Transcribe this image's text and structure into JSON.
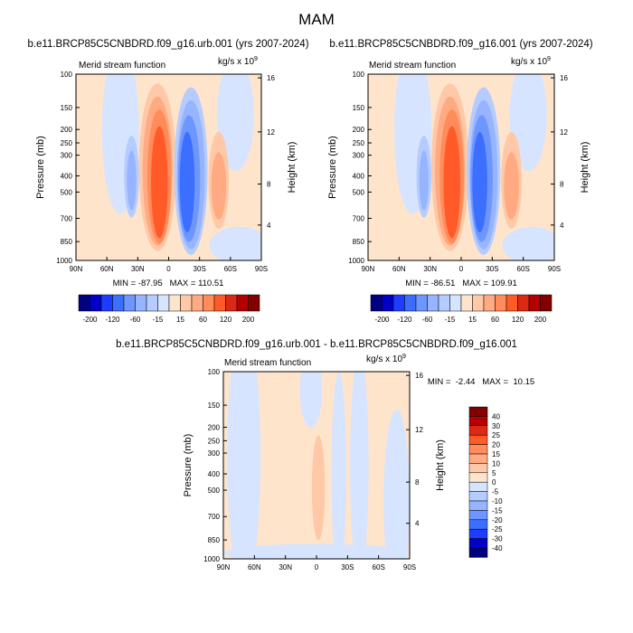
{
  "page_title": "MAM",
  "colors": {
    "neg": [
      "#000080",
      "#0000c8",
      "#1e3cff",
      "#3c6eff",
      "#6e96ff",
      "#96b4ff",
      "#b4ccff",
      "#d6e4ff"
    ],
    "pos": [
      "#ffe4cc",
      "#ffc8a6",
      "#ffaa82",
      "#ff8c5a",
      "#ff5a28",
      "#dc2814",
      "#b40000",
      "#820000"
    ]
  },
  "chart_data": [
    {
      "type": "heatmap",
      "title": "b.e11.BRCP85C5CNBDRD.f09_g16.urb.001 (yrs 2007-2024)",
      "subtitle": "Merid stream function",
      "units": "kg/s x 10^9",
      "ylabel": "Pressure (mb)",
      "y2label": "Height (km)",
      "xticks": [
        "90N",
        "60N",
        "30N",
        "0",
        "30S",
        "60S",
        "90S"
      ],
      "yticks": [
        "100",
        "150",
        "200",
        "250",
        "300",
        "400",
        "500",
        "700",
        "850",
        "1000"
      ],
      "y2ticks": [
        "16",
        "12",
        "8",
        "4"
      ],
      "stats": "MIN = -87.95   MAX = 110.51",
      "colorbar_labels": [
        "-200",
        "-120",
        "-60",
        "-15",
        "15",
        "60",
        "120",
        "200"
      ]
    },
    {
      "type": "heatmap",
      "title": "b.e11.BRCP85C5CNBDRD.f09_g16.001 (yrs 2007-2024)",
      "subtitle": "Merid stream function",
      "units": "kg/s x 10^9",
      "ylabel": "Pressure (mb)",
      "y2label": "Height (km)",
      "xticks": [
        "90N",
        "60N",
        "30N",
        "0",
        "30S",
        "60S",
        "90S"
      ],
      "yticks": [
        "100",
        "150",
        "200",
        "250",
        "300",
        "400",
        "500",
        "700",
        "850",
        "1000"
      ],
      "y2ticks": [
        "16",
        "12",
        "8",
        "4"
      ],
      "stats": "MIN = -86.51   MAX = 109.91",
      "colorbar_labels": [
        "-200",
        "-120",
        "-60",
        "-15",
        "15",
        "60",
        "120",
        "200"
      ]
    },
    {
      "type": "heatmap",
      "title": "b.e11.BRCP85C5CNBDRD.f09_g16.urb.001 - b.e11.BRCP85C5CNBDRD.f09_g16.001",
      "subtitle": "Merid stream function",
      "units": "kg/s x 10^9",
      "ylabel": "Pressure (mb)",
      "y2label": "Height (km)",
      "xticks": [
        "90N",
        "60N",
        "30N",
        "0",
        "30S",
        "60S",
        "90S"
      ],
      "yticks": [
        "100",
        "150",
        "200",
        "250",
        "300",
        "400",
        "500",
        "700",
        "850",
        "1000"
      ],
      "y2ticks": [
        "16",
        "12",
        "8",
        "4"
      ],
      "stats": "MIN =  -2.44   MAX =  10.15",
      "colorbar_labels": [
        "40",
        "30",
        "25",
        "20",
        "15",
        "10",
        "5",
        "0",
        "-5",
        "-10",
        "-15",
        "-20",
        "-25",
        "-30",
        "-40"
      ]
    }
  ]
}
